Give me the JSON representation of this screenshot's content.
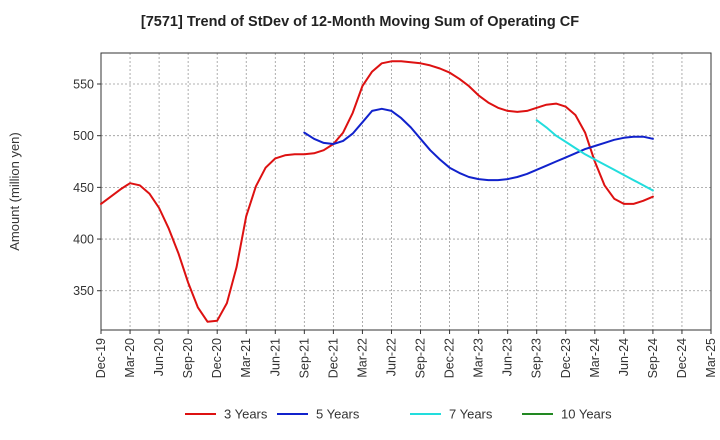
{
  "chart_data": {
    "type": "line",
    "title": "[7571]  Trend of StDev of 12-Month Moving Sum of Operating CF",
    "ylabel": "Amount (million yen)",
    "xlabel": "",
    "ylim": [
      312,
      580
    ],
    "yticks": [
      350,
      400,
      450,
      500,
      550
    ],
    "xticks": [
      "Dec-19",
      "Mar-20",
      "Jun-20",
      "Sep-20",
      "Dec-20",
      "Mar-21",
      "Jun-21",
      "Sep-21",
      "Dec-21",
      "Mar-22",
      "Jun-22",
      "Sep-22",
      "Dec-22",
      "Mar-23",
      "Jun-23",
      "Sep-23",
      "Dec-23",
      "Mar-24",
      "Jun-24",
      "Sep-24",
      "Dec-24",
      "Mar-25"
    ],
    "grid": true,
    "legend_position": "bottom",
    "series": [
      {
        "name": "3 Years",
        "color": "#dd1111",
        "x": [
          "Dec-19",
          "Jan-20",
          "Feb-20",
          "Mar-20",
          "Apr-20",
          "May-20",
          "Jun-20",
          "Jul-20",
          "Aug-20",
          "Sep-20",
          "Oct-20",
          "Nov-20",
          "Dec-20",
          "Jan-21",
          "Feb-21",
          "Mar-21",
          "Apr-21",
          "May-21",
          "Jun-21",
          "Jul-21",
          "Aug-21",
          "Sep-21",
          "Oct-21",
          "Nov-21",
          "Dec-21",
          "Jan-22",
          "Feb-22",
          "Mar-22",
          "Apr-22",
          "May-22",
          "Jun-22",
          "Jul-22",
          "Aug-22",
          "Sep-22",
          "Oct-22",
          "Nov-22",
          "Dec-22",
          "Jan-23",
          "Feb-23",
          "Mar-23",
          "Apr-23",
          "May-23",
          "Jun-23",
          "Jul-23",
          "Aug-23",
          "Sep-23",
          "Oct-23",
          "Nov-23",
          "Dec-23",
          "Jan-24",
          "Feb-24",
          "Mar-24",
          "Apr-24",
          "May-24",
          "Jun-24",
          "Jul-24",
          "Aug-24",
          "Sep-24"
        ],
        "values": [
          434,
          441,
          448,
          454,
          452,
          444,
          430,
          410,
          386,
          358,
          334,
          320,
          321,
          338,
          373,
          422,
          451,
          469,
          478,
          481,
          482,
          482,
          483,
          486,
          492,
          503,
          522,
          548,
          562,
          570,
          572,
          572,
          571,
          570,
          568,
          565,
          561,
          555,
          548,
          539,
          532,
          527,
          524,
          523,
          524,
          527,
          530,
          531,
          528,
          520,
          503,
          475,
          452,
          439,
          434,
          434,
          437,
          441
        ]
      },
      {
        "name": "5 Years",
        "color": "#1122cc",
        "x": [
          "Sep-21",
          "Oct-21",
          "Nov-21",
          "Dec-21",
          "Jan-22",
          "Feb-22",
          "Mar-22",
          "Apr-22",
          "May-22",
          "Jun-22",
          "Jul-22",
          "Aug-22",
          "Sep-22",
          "Oct-22",
          "Nov-22",
          "Dec-22",
          "Jan-23",
          "Feb-23",
          "Mar-23",
          "Apr-23",
          "May-23",
          "Jun-23",
          "Jul-23",
          "Aug-23",
          "Sep-23",
          "Oct-23",
          "Nov-23",
          "Dec-23",
          "Jan-24",
          "Feb-24",
          "Mar-24",
          "Apr-24",
          "May-24",
          "Jun-24",
          "Jul-24",
          "Aug-24",
          "Sep-24"
        ],
        "values": [
          503,
          497,
          493,
          492,
          495,
          502,
          513,
          524,
          526,
          524,
          517,
          508,
          497,
          486,
          477,
          469,
          464,
          460,
          458,
          457,
          457,
          458,
          460,
          463,
          467,
          471,
          475,
          479,
          483,
          487,
          490,
          493,
          496,
          498,
          499,
          499,
          497
        ]
      },
      {
        "name": "7 Years",
        "color": "#22dddd",
        "x": [
          "Sep-23",
          "Oct-23",
          "Nov-23",
          "Dec-23",
          "Jan-24",
          "Feb-24",
          "Mar-24",
          "Apr-24",
          "May-24",
          "Jun-24",
          "Jul-24",
          "Aug-24",
          "Sep-24"
        ],
        "values": [
          515,
          508,
          500,
          494,
          488,
          482,
          477,
          472,
          467,
          462,
          457,
          452,
          447
        ]
      },
      {
        "name": "10 Years",
        "color": "#228822",
        "x": [],
        "values": []
      }
    ]
  }
}
